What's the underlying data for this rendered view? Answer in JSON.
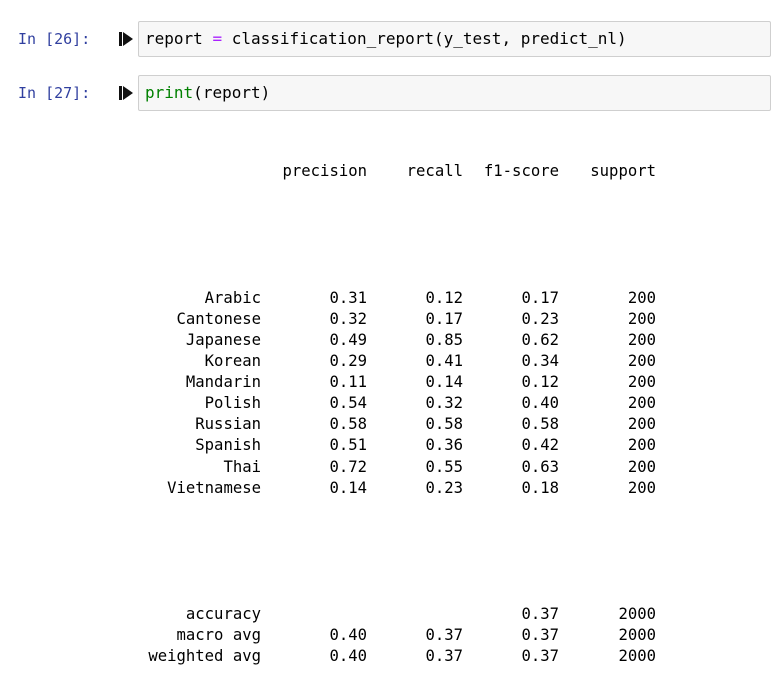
{
  "cells": [
    {
      "prompt": "In [26]:",
      "code": {
        "var": "report ",
        "op": "=",
        "rest_before": " classification_report",
        "paren_open": "(",
        "args": "y_test, predict_nl",
        "paren_close": ")"
      }
    },
    {
      "prompt": "In [27]:",
      "code": {
        "builtin": "print",
        "paren_open": "(",
        "args": "report",
        "paren_close": ")"
      }
    }
  ],
  "report": {
    "headers": [
      "precision",
      "recall",
      "f1-score",
      "support"
    ],
    "classes": [
      {
        "label": "Arabic",
        "precision": "0.31",
        "recall": "0.12",
        "f1": "0.17",
        "support": "200"
      },
      {
        "label": "Cantonese",
        "precision": "0.32",
        "recall": "0.17",
        "f1": "0.23",
        "support": "200"
      },
      {
        "label": "Japanese",
        "precision": "0.49",
        "recall": "0.85",
        "f1": "0.62",
        "support": "200"
      },
      {
        "label": "Korean",
        "precision": "0.29",
        "recall": "0.41",
        "f1": "0.34",
        "support": "200"
      },
      {
        "label": "Mandarin",
        "precision": "0.11",
        "recall": "0.14",
        "f1": "0.12",
        "support": "200"
      },
      {
        "label": "Polish",
        "precision": "0.54",
        "recall": "0.32",
        "f1": "0.40",
        "support": "200"
      },
      {
        "label": "Russian",
        "precision": "0.58",
        "recall": "0.58",
        "f1": "0.58",
        "support": "200"
      },
      {
        "label": "Spanish",
        "precision": "0.51",
        "recall": "0.36",
        "f1": "0.42",
        "support": "200"
      },
      {
        "label": "Thai",
        "precision": "0.72",
        "recall": "0.55",
        "f1": "0.63",
        "support": "200"
      },
      {
        "label": "Vietnamese",
        "precision": "0.14",
        "recall": "0.23",
        "f1": "0.18",
        "support": "200"
      }
    ],
    "summary": [
      {
        "label": "accuracy",
        "precision": "",
        "recall": "",
        "f1": "0.37",
        "support": "2000"
      },
      {
        "label": "macro avg",
        "precision": "0.40",
        "recall": "0.37",
        "f1": "0.37",
        "support": "2000"
      },
      {
        "label": "weighted avg",
        "precision": "0.40",
        "recall": "0.37",
        "f1": "0.37",
        "support": "2000"
      }
    ]
  },
  "icons": {
    "run": "run-cell-icon"
  },
  "colors": {
    "prompt": "#303f9f",
    "operator": "#aa22ff",
    "builtin": "#008000"
  }
}
